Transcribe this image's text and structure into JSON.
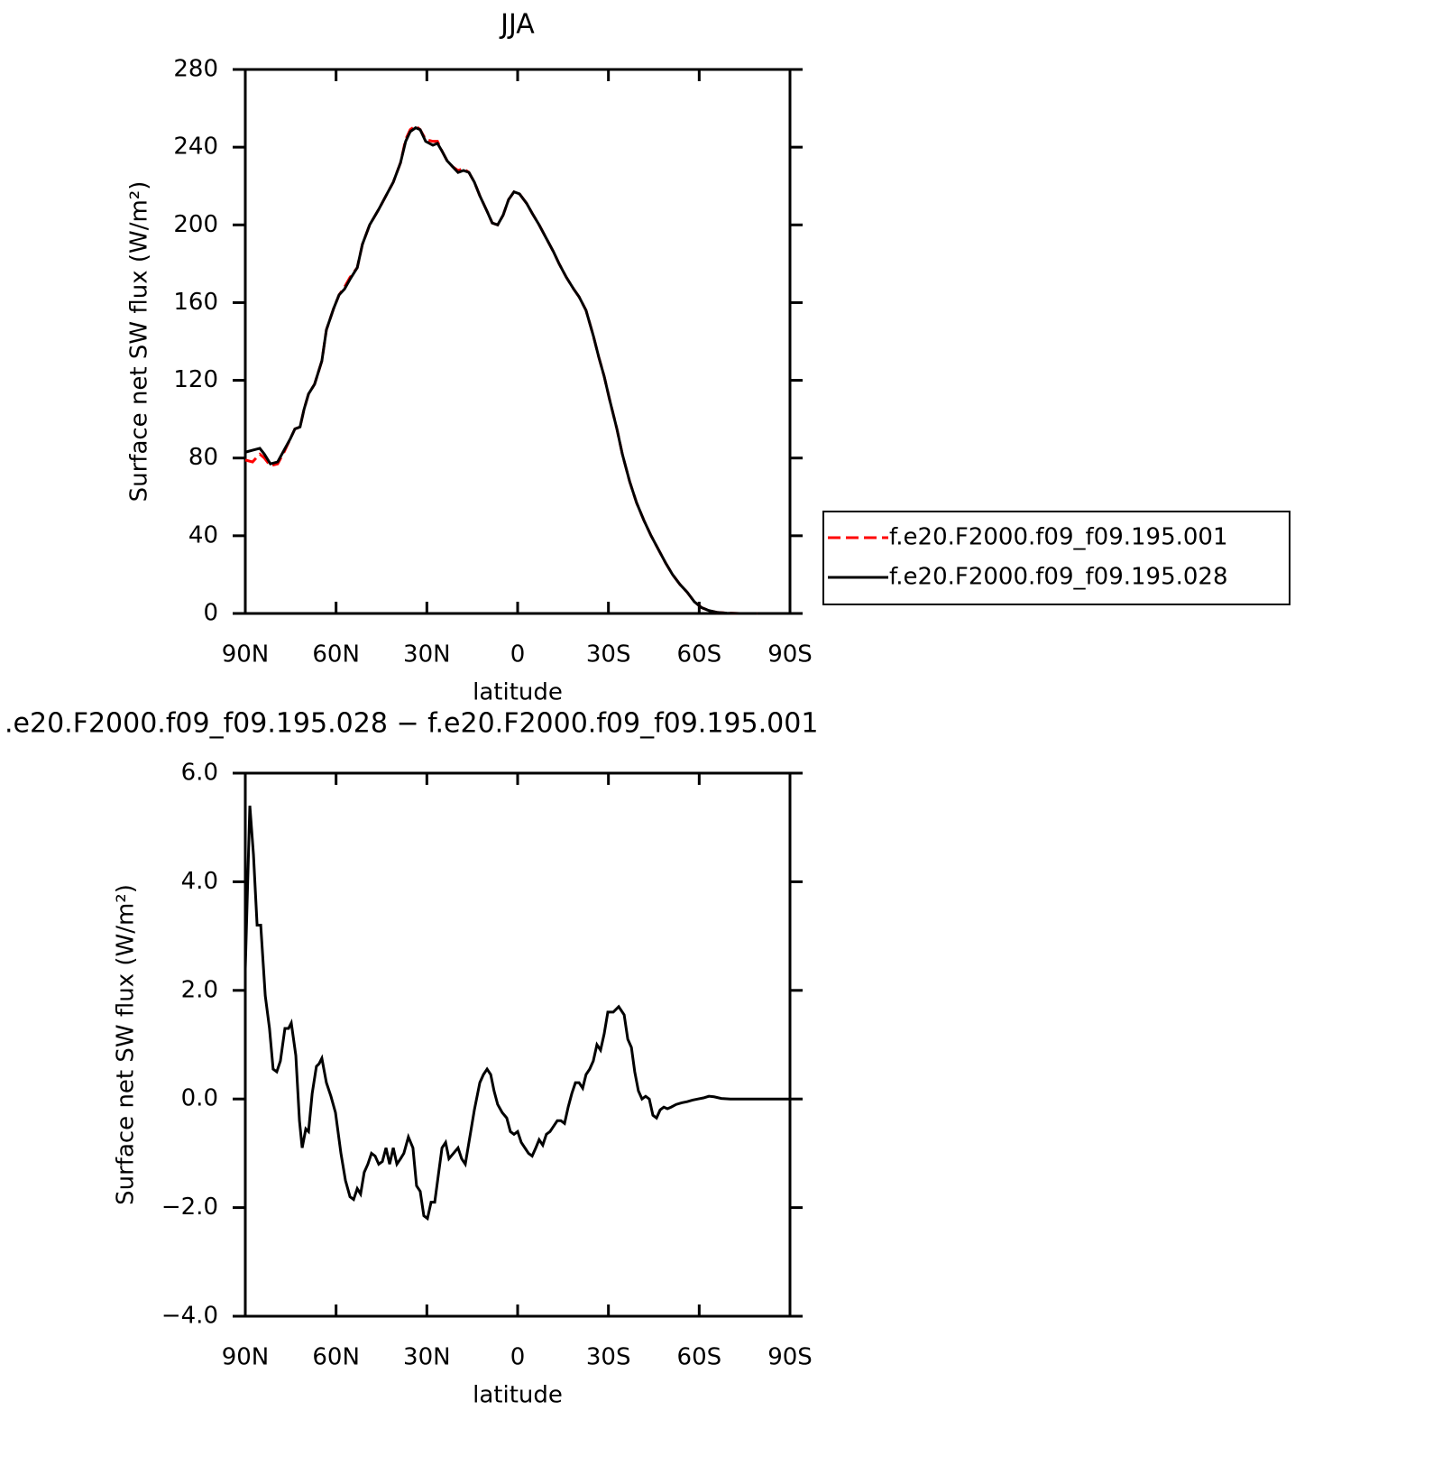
{
  "chart_data": [
    {
      "type": "line",
      "title": "JJA",
      "xlabel": "latitude",
      "ylabel": "Surface net SW flux (W/m²)",
      "xlim": [
        90,
        -90
      ],
      "ylim": [
        0,
        280
      ],
      "xticks": [
        {
          "value": 90,
          "label": "90N"
        },
        {
          "value": 60,
          "label": "60N"
        },
        {
          "value": 30,
          "label": "30N"
        },
        0,
        {
          "value": -30,
          "label": "30S"
        },
        {
          "value": -60,
          "label": "60S"
        },
        {
          "value": -90,
          "label": "90S"
        }
      ],
      "yticks": [
        0,
        40,
        80,
        120,
        160,
        200,
        240,
        280
      ],
      "legend": "outside right",
      "x": [
        90,
        87.6,
        85.2,
        83.7,
        81.7,
        79.3,
        77.2,
        75.1,
        73.6,
        71.9,
        70.6,
        69.1,
        67.1,
        64.7,
        63.2,
        60.8,
        59,
        57.2,
        55.4,
        53,
        51.3,
        48.9,
        45.9,
        43.5,
        41.1,
        38.7,
        37,
        35.5,
        33.7,
        32.2,
        30.4,
        28,
        26.5,
        25,
        23.3,
        21.5,
        19.7,
        17.9,
        16.1,
        14.3,
        12.5,
        10.1,
        8.4,
        6.6,
        4.8,
        3,
        1.2,
        -0.6,
        -3,
        -4.8,
        -7.1,
        -9.5,
        -11.9,
        -13.7,
        -16.1,
        -18.5,
        -20.3,
        -22.6,
        -25,
        -26.8,
        -28.6,
        -30.4,
        -32.8,
        -34.6,
        -37,
        -39.3,
        -41.7,
        -44.1,
        -46.5,
        -48.9,
        -51.2,
        -53.6,
        -56,
        -58.4,
        -60.8,
        -63.2,
        -66.1,
        -69.1,
        -73.3,
        -79.2
      ],
      "series": [
        {
          "name": "f.e20.F2000.f09_f09.195.001",
          "color": "#ff0000",
          "linestyle": "dashed",
          "values": [
            79,
            78,
            82,
            80,
            76,
            77,
            83,
            90,
            95,
            96,
            105,
            113,
            118,
            130,
            146,
            157,
            164,
            168,
            173,
            178,
            190,
            200,
            208,
            215,
            222,
            232,
            244,
            249,
            251,
            249,
            244,
            243,
            243,
            238,
            233,
            230,
            228,
            229,
            227,
            222,
            215,
            207,
            201,
            200,
            205,
            213,
            217,
            216,
            211,
            206,
            200,
            193,
            186,
            180,
            173,
            167,
            163,
            156,
            143,
            132,
            122,
            110,
            95,
            82,
            68,
            57,
            48,
            40,
            33,
            26,
            20,
            15,
            11,
            6,
            3,
            1.5,
            0.5,
            0.2,
            0,
            0
          ]
        },
        {
          "name": "f.e20.F2000.f09_f09.195.028",
          "color": "#000000",
          "linestyle": "solid",
          "values": [
            83,
            84,
            85,
            82,
            77,
            78,
            84,
            90,
            95,
            96,
            105,
            113,
            118,
            130,
            146,
            157,
            164,
            167,
            172,
            178,
            190,
            200,
            208,
            215,
            222,
            232,
            243,
            248,
            250,
            249,
            243,
            241,
            242,
            238,
            233,
            230,
            227,
            228,
            227,
            222,
            215,
            207,
            201,
            200,
            205,
            213,
            217,
            216,
            211,
            206,
            200,
            193,
            186,
            180,
            173,
            167,
            163,
            156,
            143,
            132,
            122,
            110,
            95,
            82,
            68,
            57,
            48,
            40,
            33,
            26,
            20,
            15,
            11,
            6,
            3,
            1.5,
            0.5,
            0.2,
            0,
            0
          ]
        }
      ]
    },
    {
      "type": "line",
      "title": ".e20.F2000.f09_f09.195.028 − f.e20.F2000.f09_f09.195.001",
      "xlabel": "latitude",
      "ylabel": "Surface net SW flux (W/m²)",
      "xlim": [
        90,
        -90
      ],
      "ylim": [
        -4,
        6
      ],
      "xticks": [
        {
          "value": 90,
          "label": "90N"
        },
        {
          "value": 60,
          "label": "60N"
        },
        {
          "value": 30,
          "label": "30N"
        },
        0,
        {
          "value": -30,
          "label": "30S"
        },
        {
          "value": -60,
          "label": "60S"
        },
        {
          "value": -90,
          "label": "90S"
        }
      ],
      "yticks": [
        {
          "value": -4,
          "label": "−4.0"
        },
        {
          "value": -2,
          "label": "−2.0"
        },
        {
          "value": 0,
          "label": "0.0"
        },
        {
          "value": 2,
          "label": "2.0"
        },
        {
          "value": 4,
          "label": "4.0"
        },
        {
          "value": 6,
          "label": "6.0"
        }
      ],
      "x": [
        90,
        88.5,
        87.3,
        86.1,
        84.9,
        83.4,
        82,
        80.8,
        79.6,
        78.4,
        76.9,
        75.7,
        74.8,
        73.3,
        72.1,
        71.2,
        70,
        69.1,
        67.9,
        66.5,
        65.6,
        64.7,
        63.2,
        61.7,
        60.2,
        58.4,
        56.9,
        55.4,
        54.2,
        53,
        51.9,
        50.7,
        49.5,
        48.3,
        47.1,
        45.9,
        44.7,
        43.5,
        42.3,
        41.1,
        39.9,
        38.7,
        37.6,
        36.1,
        34.6,
        33.4,
        32.2,
        31,
        29.8,
        28.6,
        27.4,
        26.2,
        25,
        23.8,
        22.7,
        21.2,
        19.7,
        18.5,
        17.3,
        16.1,
        14.3,
        12.5,
        11.3,
        10.1,
        8.9,
        7.8,
        6.6,
        5.1,
        3.6,
        2.4,
        1.2,
        0,
        -1.2,
        -2.4,
        -3.6,
        -4.8,
        -6,
        -7.1,
        -8.3,
        -9.5,
        -10.7,
        -11.9,
        -13.1,
        -14.3,
        -15.5,
        -16.7,
        -17.9,
        -19.1,
        -20.3,
        -21.5,
        -22.6,
        -23.8,
        -25,
        -26.2,
        -27.4,
        -28.6,
        -29.8,
        -31.6,
        -33.4,
        -35.2,
        -36.4,
        -37.6,
        -38.7,
        -39.9,
        -41.1,
        -42.3,
        -43.5,
        -44.7,
        -45.9,
        -47.1,
        -48.3,
        -49.5,
        -50.7,
        -52.4,
        -54.2,
        -56,
        -57.8,
        -59.6,
        -61.4,
        -63.2,
        -64.9,
        -67.3,
        -70.3,
        -76.3,
        -90
      ],
      "series": [
        {
          "color": "#000000",
          "linestyle": "solid",
          "values": [
            2.4,
            5.4,
            4.5,
            3.2,
            3.2,
            1.9,
            1.3,
            0.55,
            0.5,
            0.7,
            1.3,
            1.3,
            1.4,
            0.8,
            -0.4,
            -0.9,
            -0.55,
            -0.6,
            0.1,
            0.6,
            0.65,
            0.75,
            0.3,
            0.05,
            -0.25,
            -1.0,
            -1.5,
            -1.8,
            -1.85,
            -1.65,
            -1.75,
            -1.35,
            -1.2,
            -1.0,
            -1.05,
            -1.2,
            -1.15,
            -0.9,
            -1.2,
            -0.9,
            -1.2,
            -1.1,
            -1.0,
            -0.7,
            -0.9,
            -1.6,
            -1.7,
            -2.15,
            -2.2,
            -1.9,
            -1.9,
            -1.4,
            -0.9,
            -0.8,
            -1.1,
            -1.0,
            -0.9,
            -1.1,
            -1.2,
            -0.8,
            -0.2,
            0.3,
            0.45,
            0.55,
            0.45,
            0.15,
            -0.1,
            -0.25,
            -0.35,
            -0.6,
            -0.65,
            -0.6,
            -0.8,
            -0.9,
            -1.0,
            -1.05,
            -0.9,
            -0.75,
            -0.85,
            -0.65,
            -0.6,
            -0.5,
            -0.4,
            -0.4,
            -0.45,
            -0.15,
            0.1,
            0.3,
            0.3,
            0.2,
            0.45,
            0.55,
            0.7,
            1.0,
            0.9,
            1.2,
            1.6,
            1.6,
            1.7,
            1.55,
            1.1,
            0.95,
            0.5,
            0.15,
            0.0,
            0.05,
            0.0,
            -0.3,
            -0.35,
            -0.2,
            -0.15,
            -0.18,
            -0.15,
            -0.1,
            -0.07,
            -0.05,
            -0.02,
            0.0,
            0.02,
            0.05,
            0.04,
            0.01,
            0.0,
            0.0,
            0.0
          ]
        }
      ]
    }
  ]
}
